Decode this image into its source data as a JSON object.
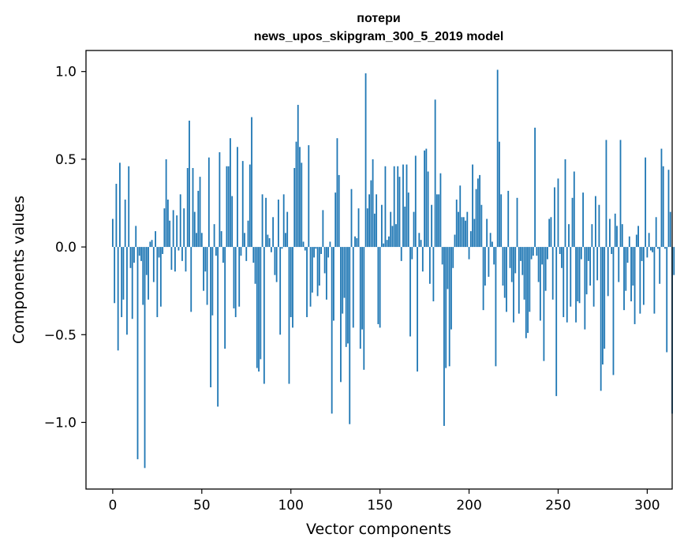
{
  "chart_data": {
    "type": "bar",
    "title": "потери",
    "subtitle": "news_upos_skipgram_300_5_2019 model",
    "xlabel": "Vector components",
    "ylabel": "Components values",
    "xlim": [
      -15,
      314
    ],
    "ylim": [
      -1.38,
      1.12
    ],
    "xticks": [
      0,
      50,
      100,
      150,
      200,
      250,
      300
    ],
    "xtick_labels": [
      "0",
      "50",
      "100",
      "150",
      "200",
      "250",
      "300"
    ],
    "yticks": [
      1.0,
      0.5,
      0.0,
      -0.5,
      -1.0
    ],
    "ytick_labels": [
      "1.0",
      "0.5",
      "0.0",
      "−0.5",
      "−1.0"
    ],
    "bar_color": "#1f77b4",
    "grid": false,
    "series": [
      {
        "values": [
          0.16,
          -0.32,
          0.36,
          -0.59,
          0.48,
          -0.4,
          -0.3,
          0.27,
          -0.5,
          0.46,
          -0.12,
          -0.41,
          -0.09,
          0.12,
          -1.21,
          -0.05,
          -0.08,
          -0.33,
          -1.26,
          -0.16,
          -0.3,
          0.03,
          0.04,
          -0.2,
          0.09,
          -0.4,
          -0.06,
          -0.34,
          -0.04,
          0.22,
          0.5,
          0.27,
          0.15,
          -0.13,
          0.21,
          -0.14,
          0.18,
          -0.02,
          0.3,
          -0.08,
          0.22,
          -0.14,
          0.45,
          0.72,
          -0.37,
          0.45,
          0.2,
          0.08,
          0.32,
          0.4,
          0.08,
          -0.25,
          -0.14,
          -0.33,
          0.51,
          -0.8,
          -0.39,
          0.13,
          -0.05,
          -0.91,
          0.54,
          0.09,
          -0.09,
          -0.58,
          0.46,
          0.46,
          0.62,
          0.29,
          -0.35,
          -0.4,
          0.57,
          -0.34,
          -0.05,
          0.49,
          0.08,
          -0.08,
          0.15,
          0.47,
          0.74,
          -0.09,
          -0.21,
          -0.69,
          -0.71,
          -0.64,
          0.3,
          -0.78,
          0.28,
          0.07,
          0.05,
          -0.03,
          0.17,
          -0.16,
          -0.2,
          0.27,
          -0.5,
          -0.01,
          0.3,
          0.08,
          0.2,
          -0.78,
          -0.4,
          -0.46,
          0.45,
          0.6,
          0.81,
          0.57,
          0.48,
          0.03,
          -0.02,
          -0.4,
          0.58,
          -0.34,
          -0.26,
          -0.06,
          -0.01,
          -0.28,
          -0.22,
          -0.04,
          0.21,
          -0.15,
          -0.3,
          -0.06,
          0.03,
          -0.95,
          -0.42,
          0.31,
          0.62,
          0.41,
          -0.77,
          -0.38,
          -0.29,
          -0.57,
          -0.55,
          -1.01,
          0.33,
          -0.46,
          0.06,
          0.05,
          0.22,
          -0.58,
          -0.47,
          -0.7,
          0.99,
          0.22,
          0.3,
          0.38,
          0.5,
          0.19,
          0.3,
          -0.44,
          -0.46,
          0.24,
          0.02,
          0.46,
          0.04,
          0.06,
          0.2,
          0.12,
          0.46,
          0.13,
          0.46,
          0.4,
          -0.08,
          0.47,
          0.23,
          0.47,
          0.31,
          -0.51,
          -0.07,
          0.2,
          0.52,
          -0.71,
          0.08,
          0.04,
          -0.14,
          0.55,
          0.56,
          0.43,
          -0.21,
          0.24,
          -0.31,
          0.84,
          0.3,
          0.3,
          0.42,
          -0.1,
          -1.02,
          -0.69,
          -0.24,
          -0.68,
          -0.47,
          -0.12,
          0.07,
          0.27,
          0.2,
          0.35,
          0.17,
          0.17,
          0.15,
          0.2,
          -0.07,
          0.09,
          0.47,
          0.16,
          0.33,
          0.39,
          0.41,
          0.24,
          -0.36,
          -0.22,
          0.16,
          -0.17,
          0.08,
          0.03,
          -0.1,
          -0.68,
          1.01,
          0.6,
          0.3,
          -0.22,
          -0.29,
          -0.37,
          0.32,
          -0.12,
          -0.2,
          -0.43,
          -0.15,
          0.28,
          -0.38,
          -0.08,
          -0.16,
          -0.3,
          -0.52,
          -0.49,
          -0.37,
          -0.07,
          -0.05,
          0.68,
          -0.05,
          -0.2,
          -0.42,
          -0.1,
          -0.65,
          -0.25,
          -0.07,
          0.16,
          0.17,
          -0.3,
          0.34,
          -0.85,
          0.39,
          -0.04,
          -0.12,
          -0.4,
          0.5,
          -0.43,
          0.13,
          -0.34,
          0.28,
          0.43,
          -0.43,
          -0.31,
          -0.32,
          -0.07,
          0.31,
          -0.47,
          -0.27,
          -0.08,
          -0.22,
          0.13,
          -0.34,
          0.29,
          -0.19,
          0.24,
          -0.82,
          -0.67,
          -0.58,
          0.61,
          -0.28,
          0.16,
          -0.04,
          -0.73,
          0.19,
          0.12,
          -0.2,
          0.61,
          0.13,
          -0.36,
          -0.25,
          -0.09,
          0.06,
          -0.31,
          -0.22,
          -0.44,
          0.07,
          0.12,
          -0.38,
          -0.08,
          -0.33,
          0.51,
          -0.06,
          0.08,
          -0.02,
          -0.03,
          -0.38,
          0.17,
          -0.01,
          -0.21,
          0.56,
          0.46,
          -0.01,
          -0.6,
          0.44,
          0.2,
          -0.95,
          -0.16
        ]
      }
    ]
  }
}
